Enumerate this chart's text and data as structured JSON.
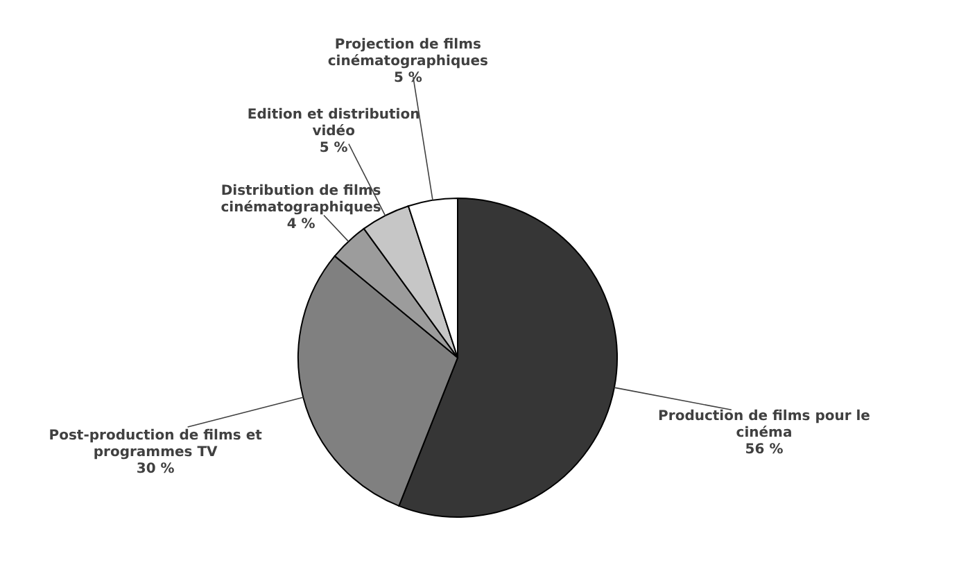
{
  "chart_data": {
    "type": "pie",
    "categories": [
      "Production de films pour le cinéma",
      "Post-production de films et programmes TV",
      "Distribution de films cinématographiques",
      "Edition et distribution vidéo",
      "Projection de films cinématographiques"
    ],
    "values": [
      56,
      30,
      4,
      5,
      5
    ],
    "value_labels": [
      "56 %",
      "30 %",
      "4 %",
      "5 %",
      "5 %"
    ],
    "colors": [
      "#363636",
      "#808080",
      "#9c9c9c",
      "#c6c6c6",
      "#ffffff"
    ]
  }
}
